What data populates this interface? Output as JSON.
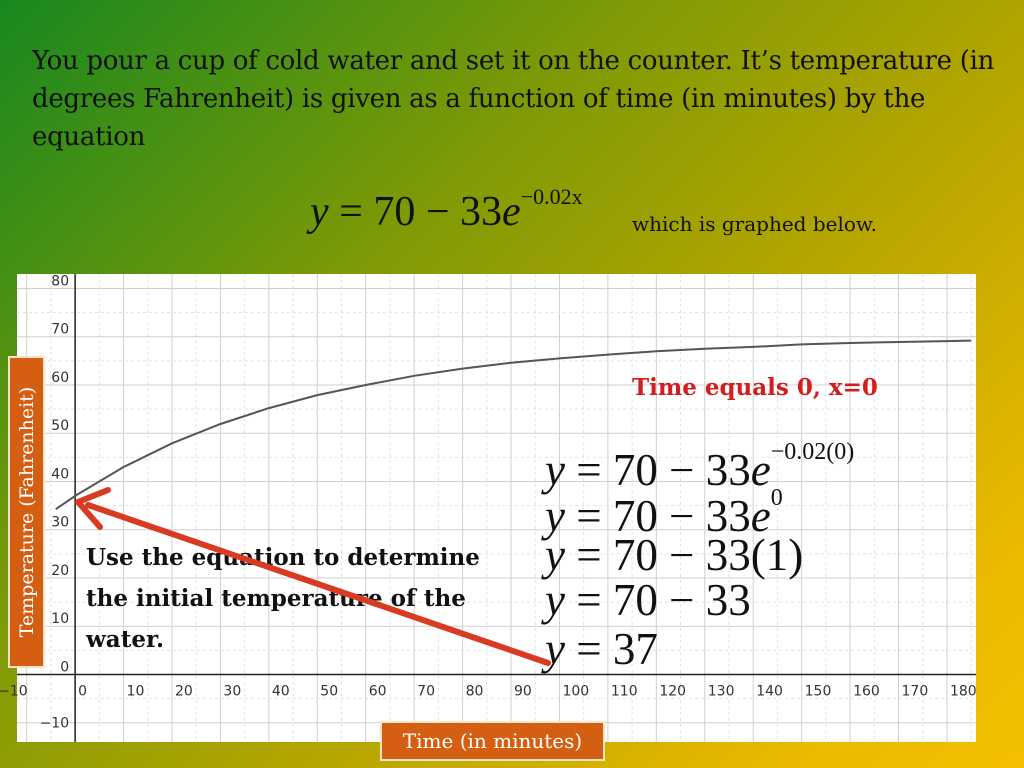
{
  "intro": {
    "text": "You pour a cup of cold water and set it on the counter. It’s temperature (in degrees Fahrenheit) is given as a function of time (in minutes) by the equation"
  },
  "equation": {
    "y": "y",
    "equals": " = 70 − 33",
    "e": "e",
    "exponent": "−0.02x",
    "note": "which is graphed below."
  },
  "chart_data": {
    "type": "line",
    "function": "y = 70 - 33e^(-0.02x)",
    "x": [
      0,
      10,
      20,
      30,
      40,
      50,
      60,
      70,
      80,
      90,
      100,
      110,
      120,
      130,
      140,
      150,
      160,
      170,
      180,
      185
    ],
    "series": [
      {
        "values": [
          37.0,
          43.0,
          47.9,
          51.9,
          55.2,
          57.9,
          60.0,
          61.9,
          63.4,
          64.6,
          65.5,
          66.3,
          67.0,
          67.5,
          67.9,
          68.4,
          68.7,
          68.9,
          69.1,
          69.2
        ]
      }
    ],
    "xlabel": "Time (in minutes)",
    "ylabel": "Temperature (Fahrenheit)",
    "xlim": [
      -12,
      186
    ],
    "ylim": [
      -14,
      83
    ],
    "x_ticks": [
      "−10",
      "0",
      "10",
      "20",
      "30",
      "40",
      "50",
      "60",
      "70",
      "80",
      "90",
      "100",
      "110",
      "120",
      "130",
      "140",
      "150",
      "160",
      "170",
      "180"
    ],
    "y_ticks": [
      "80",
      "70",
      "60",
      "50",
      "40",
      "30",
      "20",
      "10",
      "0",
      "−10"
    ],
    "grid": true,
    "line_color": "#555555"
  },
  "solution": {
    "title": "Time equals 0, x=0",
    "steps": [
      {
        "y": "y",
        "rhs": " = 70 − 33",
        "e": "e",
        "sup": "−0.02(0)"
      },
      {
        "y": "y",
        "rhs": " = 70 − 33",
        "e": "e",
        "sup": "0"
      },
      {
        "y": "y",
        "rhs": " = 70 − 33(1)"
      },
      {
        "y": "y",
        "rhs": " = 70 − 33"
      },
      {
        "y": "y",
        "rhs": " = 37"
      }
    ]
  },
  "instruction": {
    "text": "Use the equation to determine the initial temperature of the water."
  },
  "colors": {
    "label_box": "#d45f12",
    "highlight_red": "#d11e1e",
    "arrow": "#d93a22"
  }
}
